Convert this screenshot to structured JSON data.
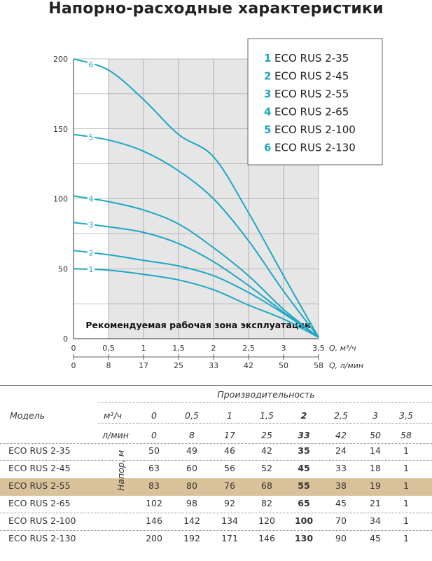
{
  "title": "Напорно-расходные характеристики",
  "chart_data": {
    "type": "line",
    "x_m3h_ticks": [
      "0",
      "0,5",
      "1",
      "1,5",
      "2",
      "2,5",
      "3",
      "3,5"
    ],
    "x_lmin_ticks": [
      "0",
      "8",
      "17",
      "25",
      "33",
      "42",
      "50",
      "58"
    ],
    "x_unit_m3h": "Q, м³/ч",
    "x_unit_lmin": "Q, л/мин",
    "y_ticks": [
      "0",
      "50",
      "100",
      "150",
      "200"
    ],
    "ylim": [
      0,
      200
    ],
    "xlim": [
      0,
      3.5
    ],
    "zone_label": "Рекомендуемая рабочая зона эксплуатации",
    "zone_range_x": [
      0.5,
      3.5
    ],
    "grid": true,
    "x": [
      0,
      0.5,
      1,
      1.5,
      2,
      2.5,
      3,
      3.5
    ],
    "series": [
      {
        "name": "ECO RUS 2-35",
        "label": "1",
        "values": [
          50,
          49,
          46,
          42,
          35,
          24,
          14,
          1
        ]
      },
      {
        "name": "ECO RUS 2-45",
        "label": "2",
        "values": [
          63,
          60,
          56,
          52,
          45,
          33,
          18,
          1
        ]
      },
      {
        "name": "ECO RUS 2-55",
        "label": "3",
        "values": [
          83,
          80,
          76,
          68,
          55,
          38,
          19,
          1
        ]
      },
      {
        "name": "ECO RUS 2-65",
        "label": "4",
        "values": [
          102,
          98,
          92,
          82,
          65,
          45,
          21,
          1
        ]
      },
      {
        "name": "ECO RUS 2-100",
        "label": "5",
        "values": [
          146,
          142,
          134,
          120,
          100,
          70,
          34,
          1
        ]
      },
      {
        "name": "ECO RUS 2-130",
        "label": "6",
        "values": [
          200,
          192,
          171,
          146,
          130,
          90,
          45,
          1
        ]
      }
    ],
    "line_color": "#1fa7c4",
    "legend_position": "top-right"
  },
  "table": {
    "group_header": "Производительность",
    "model_header": "Модель",
    "unit_m3h": "м³/ч",
    "unit_lmin": "л/мин",
    "head_label": "Напор, м",
    "flow_m3h": [
      "0",
      "0,5",
      "1",
      "1,5",
      "2",
      "2,5",
      "3",
      "3,5"
    ],
    "flow_lmin": [
      "0",
      "8",
      "17",
      "25",
      "33",
      "42",
      "50",
      "58"
    ],
    "highlight_column": 4,
    "highlight_row": 2,
    "highlight_color": "#d9c29a",
    "rows": [
      {
        "model": "ECO RUS 2-35",
        "values": [
          "50",
          "49",
          "46",
          "42",
          "35",
          "24",
          "14",
          "1"
        ]
      },
      {
        "model": "ECO RUS 2-45",
        "values": [
          "63",
          "60",
          "56",
          "52",
          "45",
          "33",
          "18",
          "1"
        ]
      },
      {
        "model": "ECO RUS 2-55",
        "values": [
          "83",
          "80",
          "76",
          "68",
          "55",
          "38",
          "19",
          "1"
        ]
      },
      {
        "model": "ECO RUS 2-65",
        "values": [
          "102",
          "98",
          "92",
          "82",
          "65",
          "45",
          "21",
          "1"
        ]
      },
      {
        "model": "ECO RUS 2-100",
        "values": [
          "146",
          "142",
          "134",
          "120",
          "100",
          "70",
          "34",
          "1"
        ]
      },
      {
        "model": "ECO RUS 2-130",
        "values": [
          "200",
          "192",
          "171",
          "146",
          "130",
          "90",
          "45",
          "1"
        ]
      }
    ]
  }
}
